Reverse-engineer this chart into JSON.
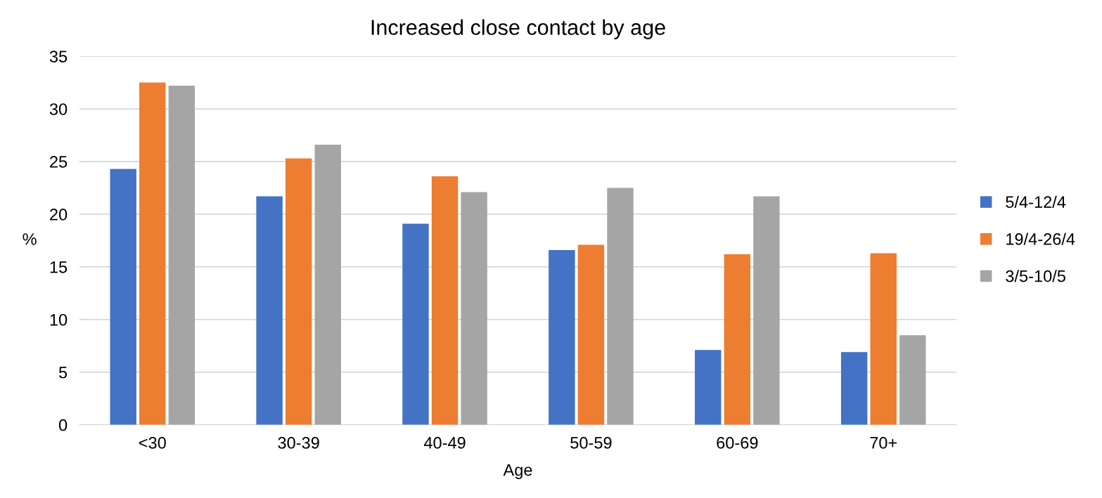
{
  "chart_data": {
    "type": "bar",
    "title": "Increased close contact by age",
    "xlabel": "Age",
    "ylabel": "%",
    "categories": [
      "<30",
      "30-39",
      "40-49",
      "50-59",
      "60-69",
      "70+"
    ],
    "series": [
      {
        "name": "5/4-12/4",
        "color": "#4472c4",
        "values": [
          24.3,
          21.7,
          19.1,
          16.6,
          7.1,
          6.9
        ]
      },
      {
        "name": "19/4-26/4",
        "color": "#ed7d31",
        "values": [
          32.5,
          25.3,
          23.6,
          17.1,
          16.2,
          16.3
        ]
      },
      {
        "name": "3/5-10/5",
        "color": "#a5a5a5",
        "values": [
          32.2,
          26.6,
          22.1,
          22.5,
          21.7,
          8.5
        ]
      }
    ],
    "ylim": [
      0,
      35
    ],
    "yticks": [
      0,
      5,
      10,
      15,
      20,
      25,
      30,
      35
    ],
    "grid": "y",
    "legend": "right"
  }
}
